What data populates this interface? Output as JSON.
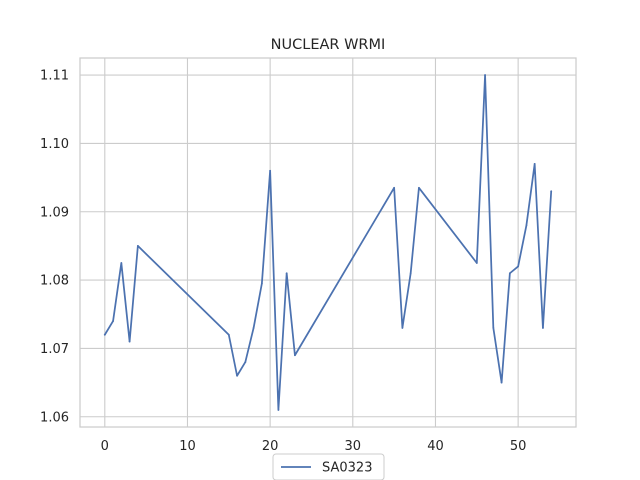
{
  "chart_data": {
    "type": "line",
    "title": "NUCLEAR WRMI",
    "xlabel": "",
    "ylabel": "",
    "xlim": [
      -3,
      57
    ],
    "ylim": [
      1.0585,
      1.1125
    ],
    "x_ticks": [
      0,
      10,
      20,
      30,
      40,
      50
    ],
    "x_tick_labels": [
      "0",
      "10",
      "20",
      "30",
      "40",
      "50"
    ],
    "y_ticks": [
      1.06,
      1.07,
      1.08,
      1.09,
      1.1,
      1.11
    ],
    "y_tick_labels": [
      "1.06",
      "1.07",
      "1.08",
      "1.09",
      "1.10",
      "1.11"
    ],
    "grid": true,
    "legend_position": "bottom-center",
    "series": [
      {
        "name": "SA0323",
        "color": "#4c72b0",
        "x": [
          0,
          1,
          2,
          3,
          4,
          15,
          16,
          17,
          18,
          19,
          20,
          21,
          22,
          23,
          35,
          36,
          37,
          38,
          45,
          46,
          47,
          48,
          49,
          50,
          51,
          52,
          53,
          54
        ],
        "y": [
          1.072,
          1.074,
          1.0825,
          1.071,
          1.085,
          1.072,
          1.066,
          1.068,
          1.073,
          1.0795,
          1.096,
          1.061,
          1.081,
          1.069,
          1.0935,
          1.073,
          1.081,
          1.0935,
          1.0825,
          1.11,
          1.073,
          1.065,
          1.081,
          1.082,
          1.088,
          1.097,
          1.073,
          1.093
        ]
      }
    ]
  }
}
